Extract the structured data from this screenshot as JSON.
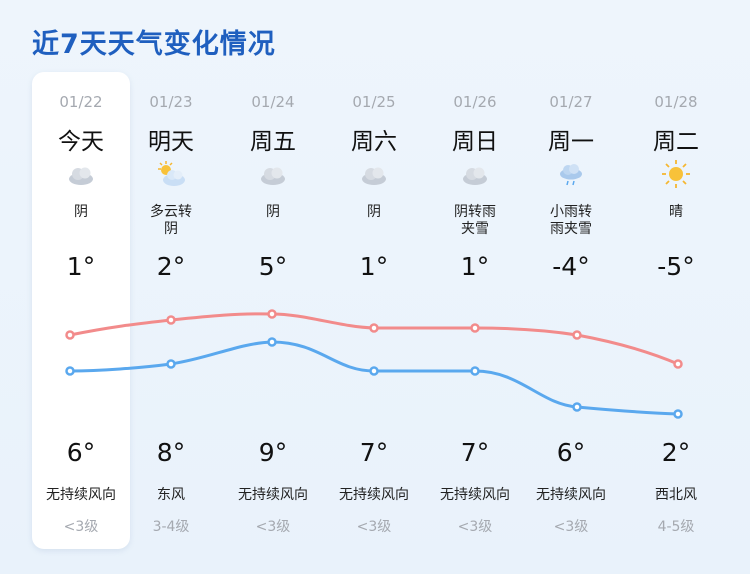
{
  "title": "近7天天气变化情况",
  "days": [
    {
      "date": "01/22",
      "weekday": "今天",
      "cond": [
        "阴",
        ""
      ],
      "icon": "overcast-cloud-icon",
      "high": "1°",
      "low": "6°",
      "wind": "无持续风向",
      "level": "<3级"
    },
    {
      "date": "01/23",
      "weekday": "明天",
      "cond": [
        "多云转",
        "阴"
      ],
      "icon": "partly-cloudy-icon",
      "high": "2°",
      "low": "8°",
      "wind": "东风",
      "level": "3-4级"
    },
    {
      "date": "01/24",
      "weekday": "周五",
      "cond": [
        "阴",
        ""
      ],
      "icon": "overcast-cloud-icon",
      "high": "5°",
      "low": "9°",
      "wind": "无持续风向",
      "level": "<3级"
    },
    {
      "date": "01/25",
      "weekday": "周六",
      "cond": [
        "阴",
        ""
      ],
      "icon": "overcast-cloud-icon",
      "high": "1°",
      "low": "7°",
      "wind": "无持续风向",
      "level": "<3级"
    },
    {
      "date": "01/26",
      "weekday": "周日",
      "cond": [
        "阴转雨",
        "夹雪"
      ],
      "icon": "overcast-cloud-icon",
      "high": "1°",
      "low": "7°",
      "wind": "无持续风向",
      "level": "<3级"
    },
    {
      "date": "01/27",
      "weekday": "周一",
      "cond": [
        "小雨转",
        "雨夹雪"
      ],
      "icon": "light-rain-icon",
      "high": "-4°",
      "low": "6°",
      "wind": "无持续风向",
      "level": "<3级"
    },
    {
      "date": "01/28",
      "weekday": "周二",
      "cond": [
        "晴",
        ""
      ],
      "icon": "sunny-icon",
      "high": "-5°",
      "low": "2°",
      "wind": "西北风",
      "level": "4-5级"
    }
  ],
  "colors": {
    "title": "#1f5fbf",
    "high_line": "#f28b8b",
    "low_line": "#5aa8ee"
  }
}
